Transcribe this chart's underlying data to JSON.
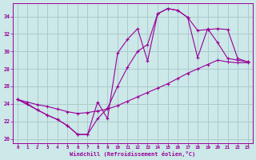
{
  "xlabel": "Windchill (Refroidissement éolien,°C)",
  "background_color": "#cce8e8",
  "grid_color": "#aacccc",
  "line_color": "#990099",
  "xlim": [
    -0.5,
    23.5
  ],
  "ylim": [
    19.5,
    35.5
  ],
  "xticks": [
    0,
    1,
    2,
    3,
    4,
    5,
    6,
    7,
    8,
    9,
    10,
    11,
    12,
    13,
    14,
    15,
    16,
    17,
    18,
    19,
    20,
    21,
    22,
    23
  ],
  "yticks": [
    20,
    22,
    24,
    26,
    28,
    30,
    32,
    34
  ],
  "line1_x": [
    0,
    1,
    2,
    3,
    4,
    5,
    6,
    7,
    8,
    9,
    10,
    11,
    12,
    13,
    14,
    15,
    16,
    17,
    18,
    19,
    20,
    21,
    22,
    23
  ],
  "line1_y": [
    24.5,
    24.0,
    23.3,
    22.7,
    22.2,
    21.5,
    20.5,
    20.5,
    24.2,
    22.3,
    29.8,
    31.4,
    32.6,
    28.9,
    34.3,
    34.9,
    34.7,
    33.9,
    29.3,
    32.6,
    31.0,
    29.2,
    29.0,
    28.8
  ],
  "line2_x": [
    0,
    1,
    2,
    3,
    4,
    5,
    6,
    7,
    8,
    9,
    10,
    11,
    12,
    13,
    14,
    15,
    16,
    17,
    18,
    19,
    20,
    21,
    22,
    23
  ],
  "line2_y": [
    24.5,
    24.2,
    23.9,
    23.7,
    23.4,
    23.1,
    22.9,
    23.0,
    23.2,
    23.4,
    23.8,
    24.3,
    24.8,
    25.3,
    25.8,
    26.3,
    26.9,
    27.5,
    28.0,
    28.5,
    29.0,
    28.8,
    28.7,
    28.7
  ],
  "line3_x": [
    0,
    2,
    3,
    4,
    5,
    6,
    7,
    8,
    9,
    10,
    11,
    12,
    13,
    14,
    15,
    16,
    17,
    18,
    19,
    20,
    21,
    22,
    23
  ],
  "line3_y": [
    24.5,
    23.3,
    22.7,
    22.2,
    21.5,
    20.5,
    20.5,
    22.3,
    23.5,
    26.0,
    28.2,
    30.0,
    30.8,
    34.3,
    34.9,
    34.7,
    33.9,
    32.4,
    32.5,
    32.6,
    32.5,
    29.2,
    28.8
  ]
}
